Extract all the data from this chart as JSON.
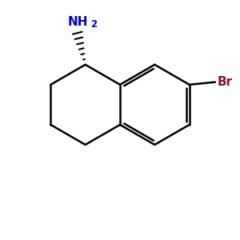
{
  "background_color": "#ffffff",
  "bond_color": "#000000",
  "nh2_color": "#0000cc",
  "br_color": "#7b1a1a",
  "bond_width": 1.8,
  "wedge_color": "#000000"
}
